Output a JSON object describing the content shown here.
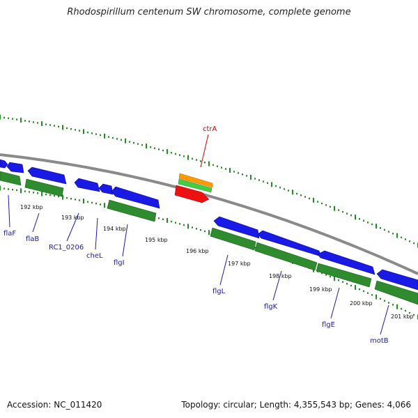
{
  "title": "Rhodospirillum centenum SW chromosome, complete genome",
  "accession": "Accession: NC_011420",
  "summary": "Topology: circular; Length: 4,355,543 bp; Genes: 4,066",
  "colors": {
    "backbone": "#8a8a8a",
    "gene_forward": "#1a1ae6",
    "gene_reverse": "#2e8b2e",
    "cds_orange": "#ff9900",
    "cds_green": "#44cc44",
    "cds_red": "#ee1111",
    "dots": "#228b22",
    "label_blue": "#1a1aa0",
    "label_red": "#cc0000"
  },
  "kbp_ticks": [
    "192 kbp",
    "193 kbp",
    "194 kbp",
    "195 kbp",
    "196 kbp",
    "197 kbp",
    "198 kbp",
    "199 kbp",
    "200 kbp",
    "201 kbp"
  ],
  "gene_labels": [
    "flaF",
    "flaB",
    "RC1_0206",
    "cheL",
    "flgI",
    "flgL",
    "flgK",
    "flgE",
    "motB"
  ],
  "highlight_label": "ctrA"
}
